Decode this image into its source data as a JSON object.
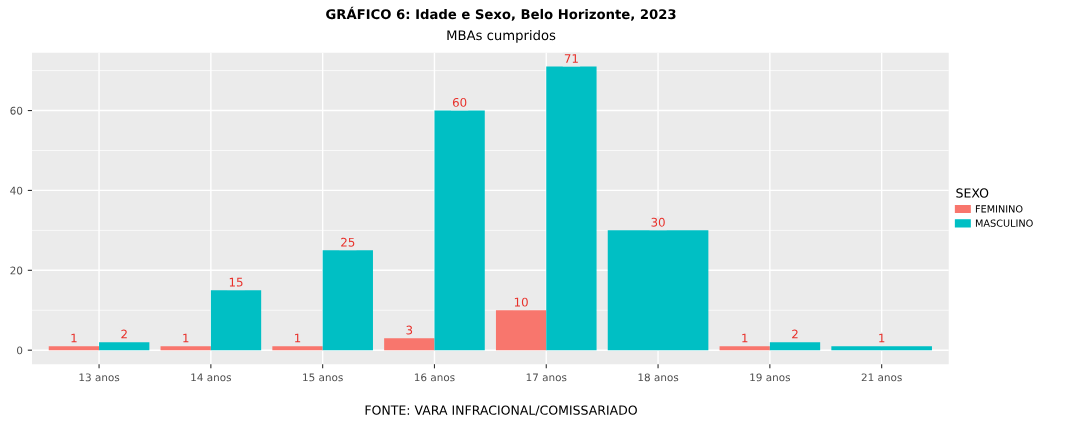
{
  "chart_data": {
    "type": "bar",
    "title": "GRÁFICO 6: Idade e Sexo, Belo Horizonte, 2023",
    "subtitle": "MBAs cumpridos",
    "categories": [
      "13 anos",
      "14 anos",
      "15 anos",
      "16 anos",
      "17 anos",
      "18 anos",
      "19 anos",
      "21 anos"
    ],
    "series": [
      {
        "name": "FEMININO",
        "color": "#f8766d",
        "values": [
          1,
          1,
          1,
          3,
          10,
          null,
          1,
          null
        ]
      },
      {
        "name": "MASCULINO",
        "color": "#00bfc4",
        "values": [
          2,
          15,
          25,
          60,
          71,
          30,
          2,
          1
        ]
      }
    ],
    "ylim": [
      -3.5,
      74.5
    ],
    "yticks": [
      0,
      20,
      40,
      60
    ],
    "grid": true,
    "legend": "right",
    "legend_title": "SEXO",
    "data_labels": true,
    "annotations": [
      "FONTE: VARA INFRACIONAL/COMISSARIADO"
    ]
  }
}
